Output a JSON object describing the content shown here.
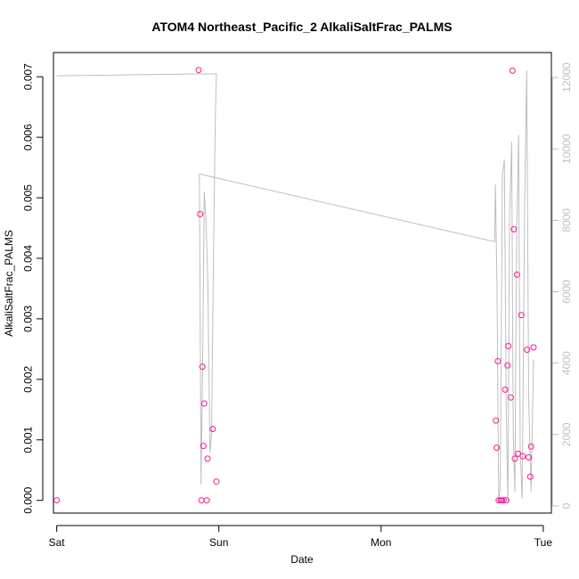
{
  "chart_data": {
    "type": "scatter",
    "title": "ATOM4 Northeast_Pacific_2 AlkaliSaltFrac_PALMS",
    "xlabel": "Date",
    "ylabel": "AlkaliSaltFrac_PALMS",
    "x_axis": {
      "unit": "days",
      "range": [
        -0.02,
        3.05
      ],
      "ticks": [
        {
          "value": 0,
          "label": "Sat"
        },
        {
          "value": 1,
          "label": "Sun"
        },
        {
          "value": 2,
          "label": "Mon"
        },
        {
          "value": 3,
          "label": "Tue"
        }
      ]
    },
    "y_axis_left": {
      "range": [
        -0.00021,
        0.0074
      ],
      "ticks": [
        {
          "value": 0.0,
          "label": "0.000"
        },
        {
          "value": 0.001,
          "label": "0.001"
        },
        {
          "value": 0.002,
          "label": "0.002"
        },
        {
          "value": 0.003,
          "label": "0.003"
        },
        {
          "value": 0.004,
          "label": "0.004"
        },
        {
          "value": 0.005,
          "label": "0.005"
        },
        {
          "value": 0.006,
          "label": "0.006"
        },
        {
          "value": 0.007,
          "label": "0.007"
        }
      ]
    },
    "y_axis_right": {
      "range": [
        -200,
        12700
      ],
      "color": "#bebebe",
      "ticks": [
        {
          "value": 0,
          "label": "0"
        },
        {
          "value": 2000,
          "label": "2000"
        },
        {
          "value": 4000,
          "label": "4000"
        },
        {
          "value": 6000,
          "label": "6000"
        },
        {
          "value": 8000,
          "label": "8000"
        },
        {
          "value": 10000,
          "label": "10000"
        },
        {
          "value": 12000,
          "label": "12000"
        }
      ]
    },
    "grid": false,
    "series": [
      {
        "axis": "left",
        "type": "scatter",
        "color": "#ff1493",
        "points": [
          {
            "x": 0.0,
            "y": 0.0
          },
          {
            "x": 0.875,
            "y": 0.00711
          },
          {
            "x": 0.885,
            "y": 0.00473
          },
          {
            "x": 0.893,
            "y": 0.0
          },
          {
            "x": 0.898,
            "y": 0.00221
          },
          {
            "x": 0.905,
            "y": 0.0009
          },
          {
            "x": 0.91,
            "y": 0.0016
          },
          {
            "x": 0.925,
            "y": 0.0
          },
          {
            "x": 0.93,
            "y": 0.00069
          },
          {
            "x": 0.962,
            "y": 0.00118
          },
          {
            "x": 0.985,
            "y": 0.00031
          },
          {
            "x": 2.708,
            "y": 0.00132
          },
          {
            "x": 2.713,
            "y": 0.00087
          },
          {
            "x": 2.72,
            "y": 0.0023
          },
          {
            "x": 2.725,
            "y": 0.0
          },
          {
            "x": 2.737,
            "y": 0.0
          },
          {
            "x": 2.745,
            "y": 0.0
          },
          {
            "x": 2.755,
            "y": 0.0
          },
          {
            "x": 2.765,
            "y": 0.00183
          },
          {
            "x": 2.772,
            "y": 0.0
          },
          {
            "x": 2.78,
            "y": 0.00223
          },
          {
            "x": 2.785,
            "y": 0.00255
          },
          {
            "x": 2.8,
            "y": 0.0017
          },
          {
            "x": 2.81,
            "y": 0.0071
          },
          {
            "x": 2.818,
            "y": 0.00448
          },
          {
            "x": 2.825,
            "y": 0.00069
          },
          {
            "x": 2.838,
            "y": 0.00373
          },
          {
            "x": 2.845,
            "y": 0.00077
          },
          {
            "x": 2.865,
            "y": 0.00306
          },
          {
            "x": 2.873,
            "y": 0.00073
          },
          {
            "x": 2.9,
            "y": 0.00249
          },
          {
            "x": 2.91,
            "y": 0.00071
          },
          {
            "x": 2.92,
            "y": 0.00039
          },
          {
            "x": 2.925,
            "y": 0.00089
          },
          {
            "x": 2.94,
            "y": 0.00253
          }
        ]
      },
      {
        "axis": "right",
        "type": "line",
        "color": "#bebebe",
        "points": [
          {
            "x": 0.0,
            "y": 12050
          },
          {
            "x": 0.86,
            "y": 12100
          },
          {
            "x": 0.985,
            "y": 12100
          },
          {
            "x": 0.978,
            "y": 10900
          },
          {
            "x": 0.965,
            "y": 6500
          },
          {
            "x": 0.955,
            "y": 2000
          },
          {
            "x": 0.945,
            "y": 1500
          },
          {
            "x": 0.932,
            "y": 6300
          },
          {
            "x": 0.92,
            "y": 8000
          },
          {
            "x": 0.91,
            "y": 8800
          },
          {
            "x": 0.9,
            "y": 4000
          },
          {
            "x": 0.89,
            "y": 600
          },
          {
            "x": 0.88,
            "y": 9300
          },
          {
            "x": 2.7,
            "y": 7400
          },
          {
            "x": 2.705,
            "y": 9000
          },
          {
            "x": 2.715,
            "y": 6000
          },
          {
            "x": 2.725,
            "y": 200
          },
          {
            "x": 2.735,
            "y": 500
          },
          {
            "x": 2.748,
            "y": 9300
          },
          {
            "x": 2.76,
            "y": 9700
          },
          {
            "x": 2.772,
            "y": 2500
          },
          {
            "x": 2.782,
            "y": 100
          },
          {
            "x": 2.792,
            "y": 8000
          },
          {
            "x": 2.805,
            "y": 10200
          },
          {
            "x": 2.815,
            "y": 2000
          },
          {
            "x": 2.825,
            "y": 400
          },
          {
            "x": 2.835,
            "y": 7500
          },
          {
            "x": 2.848,
            "y": 10400
          },
          {
            "x": 2.858,
            "y": 1500
          },
          {
            "x": 2.87,
            "y": 200
          },
          {
            "x": 2.885,
            "y": 8500
          },
          {
            "x": 2.898,
            "y": 12200
          },
          {
            "x": 2.91,
            "y": 3000
          },
          {
            "x": 2.925,
            "y": 400
          },
          {
            "x": 2.94,
            "y": 4100
          }
        ]
      }
    ]
  }
}
